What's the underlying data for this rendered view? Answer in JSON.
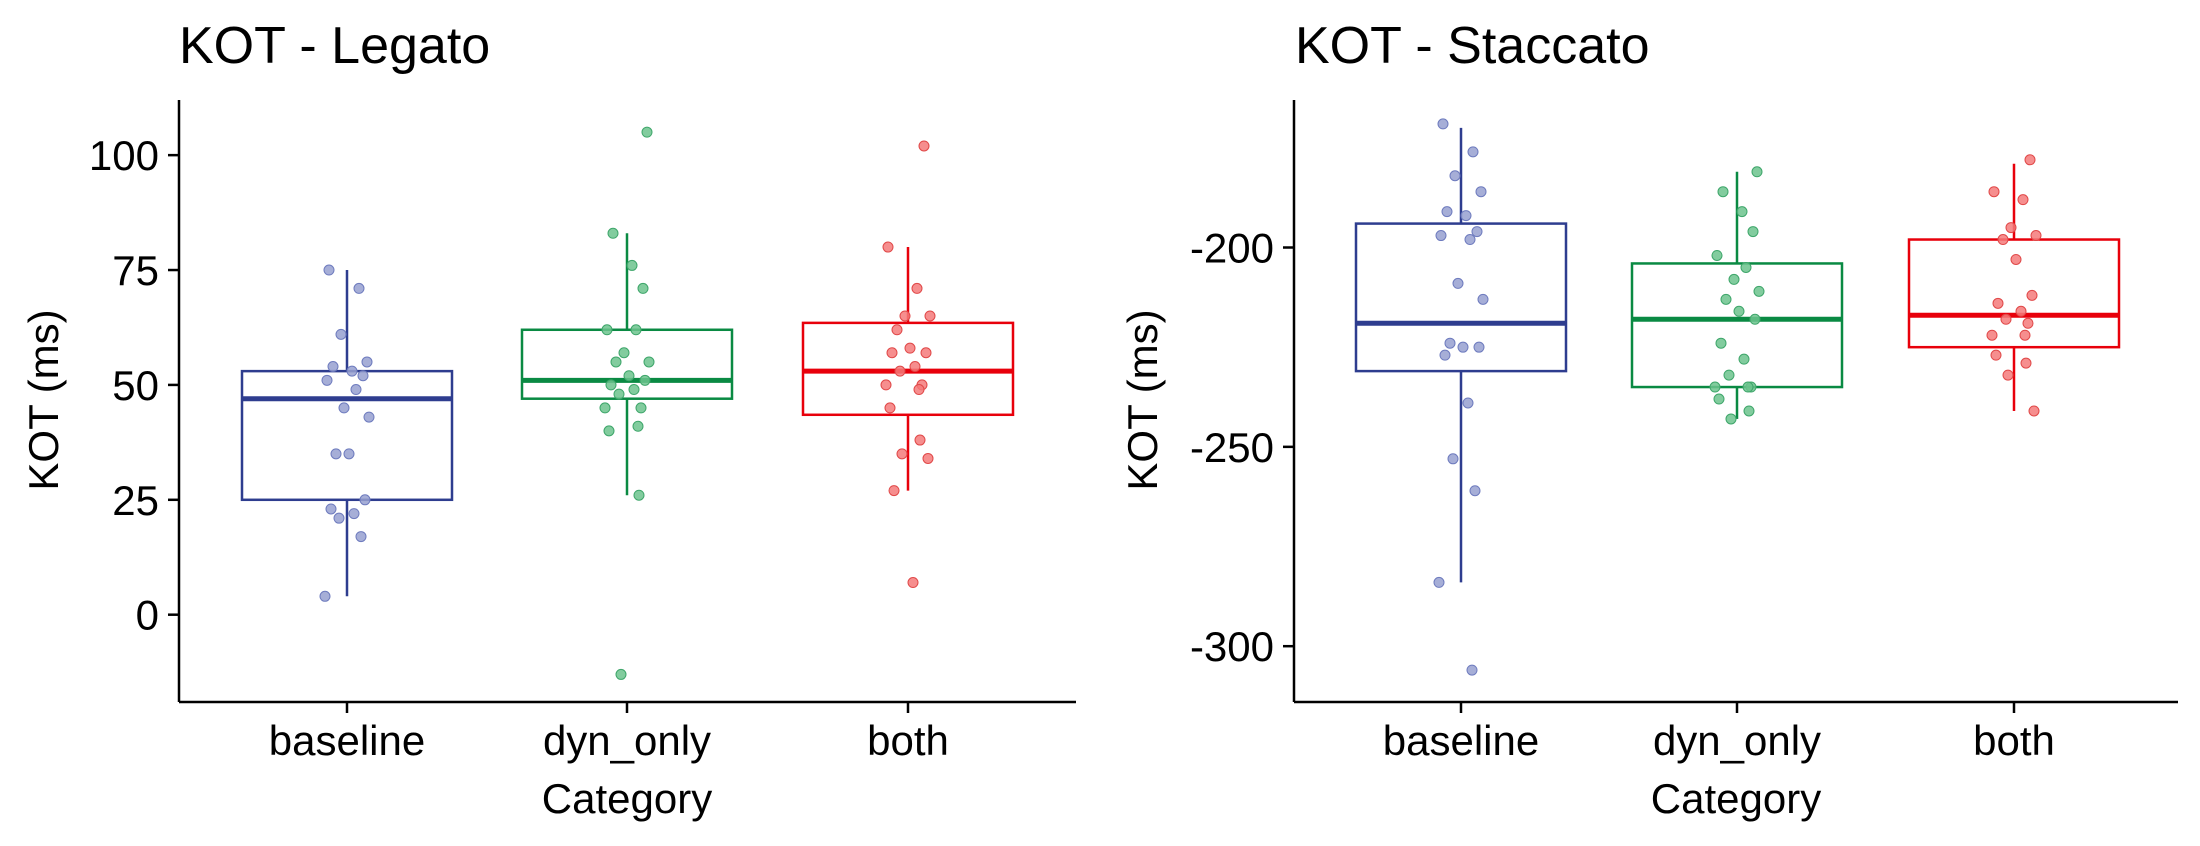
{
  "chart_data": [
    {
      "type": "box",
      "title": "KOT - Legato",
      "xlabel": "Category",
      "ylabel": "KOT (ms)",
      "categories": [
        "baseline",
        "dyn_only",
        "both"
      ],
      "ylim": [
        -19,
        112
      ],
      "yticks": [
        0,
        25,
        50,
        75,
        100
      ],
      "grid": false,
      "legend": "none",
      "colors": [
        "#2E3D8F",
        "#0A8A43",
        "#E8000B"
      ],
      "boxes": [
        {
          "category": "baseline",
          "whisker_low": 4,
          "q1": 25,
          "median": 47,
          "q3": 53,
          "whisker_high": 75
        },
        {
          "category": "dyn_only",
          "whisker_low": 26,
          "q1": 47,
          "median": 51,
          "q3": 62,
          "whisker_high": 83
        },
        {
          "category": "both",
          "whisker_low": 27,
          "q1": 43.5,
          "median": 53,
          "q3": 63.5,
          "whisker_high": 80
        }
      ],
      "points": [
        {
          "category": "baseline",
          "values": [
            75,
            71,
            61,
            55,
            54,
            53,
            52,
            51,
            49,
            45,
            43,
            35,
            35,
            25,
            23,
            22,
            21,
            17,
            4
          ]
        },
        {
          "category": "dyn_only",
          "values": [
            105,
            83,
            76,
            71,
            62,
            62,
            57,
            55,
            55,
            52,
            51,
            50,
            49,
            48,
            45,
            45,
            41,
            40,
            26,
            -13
          ]
        },
        {
          "category": "both",
          "values": [
            102,
            80,
            71,
            65,
            65,
            62,
            58,
            57,
            57,
            54,
            53,
            50,
            50,
            49,
            45,
            38,
            35,
            34,
            27,
            7
          ]
        }
      ]
    },
    {
      "type": "box",
      "title": "KOT - Staccato",
      "xlabel": "Category",
      "ylabel": "KOT (ms)",
      "categories": [
        "baseline",
        "dyn_only",
        "both"
      ],
      "ylim": [
        -314,
        -163
      ],
      "yticks": [
        -200,
        -250,
        -300
      ],
      "grid": false,
      "legend": "none",
      "colors": [
        "#2E3D8F",
        "#0A8A43",
        "#E8000B"
      ],
      "boxes": [
        {
          "category": "baseline",
          "whisker_low": -284,
          "q1": -231,
          "median": -219,
          "q3": -194,
          "whisker_high": -170
        },
        {
          "category": "dyn_only",
          "whisker_low": -243,
          "q1": -235,
          "median": -218,
          "q3": -204,
          "whisker_high": -181
        },
        {
          "category": "both",
          "whisker_low": -241,
          "q1": -225,
          "median": -217,
          "q3": -198,
          "whisker_high": -179
        }
      ],
      "points": [
        {
          "category": "baseline",
          "values": [
            -169,
            -176,
            -182,
            -186,
            -191,
            -192,
            -196,
            -197,
            -198,
            -209,
            -213,
            -224,
            -225,
            -225,
            -227,
            -239,
            -253,
            -261,
            -284,
            -306
          ]
        },
        {
          "category": "dyn_only",
          "values": [
            -181,
            -186,
            -191,
            -196,
            -202,
            -205,
            -208,
            -211,
            -213,
            -216,
            -218,
            -224,
            -228,
            -232,
            -235,
            -235,
            -235,
            -238,
            -241,
            -243
          ]
        },
        {
          "category": "both",
          "values": [
            -178,
            -186,
            -188,
            -195,
            -197,
            -198,
            -203,
            -212,
            -214,
            -216,
            -218,
            -219,
            -222,
            -222,
            -227,
            -229,
            -232,
            -241
          ]
        }
      ]
    }
  ]
}
